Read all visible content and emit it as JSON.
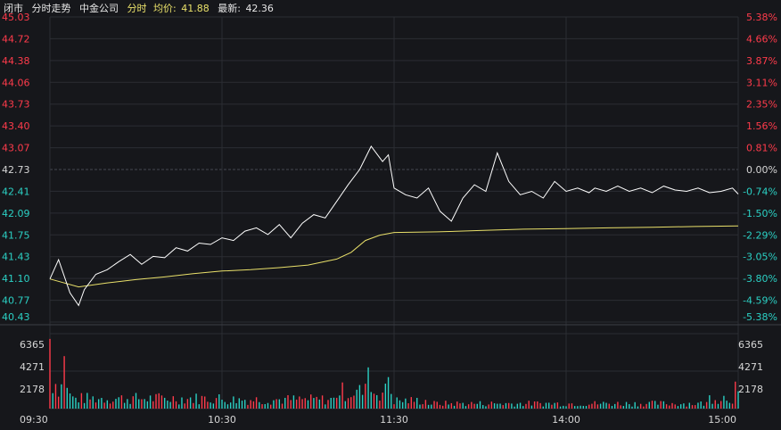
{
  "header": {
    "status": "闭市",
    "title": "分时走势",
    "stock_name": "中金公司",
    "mode_label": "分时",
    "avg_label": "均价:",
    "avg_value": "41.88",
    "last_label": "最新:",
    "last_value": "42.36"
  },
  "colors": {
    "background": "#16171b",
    "grid": "#2b2d33",
    "price_line": "#ffffff",
    "avg_line": "#e9e06a",
    "up": "#ff3b4b",
    "down": "#2bd0c4",
    "neutral": "#d6d6d6"
  },
  "chart_data": {
    "type": "line",
    "title": "",
    "prev_close": 42.73,
    "x_ticks": [
      "09:30",
      "10:30",
      "11:30",
      "14:00",
      "15:00"
    ],
    "y_left_ticks": [
      "45.03",
      "44.72",
      "44.38",
      "44.06",
      "43.73",
      "43.40",
      "43.07",
      "42.73",
      "42.41",
      "42.09",
      "41.75",
      "41.43",
      "41.10",
      "40.77",
      "40.43"
    ],
    "y_right_ticks": [
      "5.38%",
      "4.66%",
      "3.87%",
      "3.11%",
      "2.35%",
      "1.56%",
      "0.81%",
      "0.00%",
      "-0.74%",
      "-1.50%",
      "-2.29%",
      "-3.05%",
      "-3.80%",
      "-4.59%",
      "-5.38%"
    ],
    "ylim": [
      40.43,
      45.03
    ],
    "volume_ticks": [
      "6365",
      "4271",
      "2178"
    ],
    "volume_max": 8460,
    "series": [
      {
        "key": "price",
        "minutes": [
          0,
          3,
          7,
          10,
          12,
          16,
          20,
          24,
          28,
          32,
          36,
          40,
          44,
          48,
          52,
          56,
          60,
          64,
          68,
          72,
          76,
          80,
          84,
          88,
          92,
          96,
          100,
          104,
          108,
          112,
          116,
          118,
          120,
          124,
          128,
          132,
          136,
          140,
          144,
          148,
          152,
          156,
          160,
          164,
          168,
          172,
          176,
          180,
          184,
          188,
          190,
          194,
          198,
          202,
          206,
          210,
          214,
          218,
          222,
          226,
          230,
          234,
          238,
          240
        ],
        "values": [
          41.08,
          41.37,
          40.87,
          40.68,
          40.92,
          41.15,
          41.22,
          41.34,
          41.45,
          41.3,
          41.42,
          41.4,
          41.55,
          41.5,
          41.62,
          41.6,
          41.7,
          41.66,
          41.8,
          41.85,
          41.75,
          41.9,
          41.7,
          41.92,
          42.05,
          42.0,
          42.25,
          42.5,
          42.73,
          43.08,
          42.85,
          42.95,
          42.45,
          42.35,
          42.3,
          42.45,
          42.1,
          41.95,
          42.3,
          42.5,
          42.4,
          42.98,
          42.55,
          42.35,
          42.4,
          42.3,
          42.55,
          42.4,
          42.45,
          42.38,
          42.45,
          42.4,
          42.48,
          42.4,
          42.45,
          42.38,
          42.48,
          42.42,
          42.4,
          42.45,
          42.38,
          42.4,
          42.45,
          42.36
        ]
      },
      {
        "key": "average",
        "minutes": [
          0,
          10,
          20,
          30,
          40,
          50,
          60,
          70,
          80,
          90,
          100,
          105,
          110,
          115,
          120,
          135,
          150,
          165,
          180,
          195,
          210,
          225,
          240
        ],
        "values": [
          41.08,
          40.96,
          41.02,
          41.07,
          41.11,
          41.16,
          41.2,
          41.22,
          41.25,
          41.29,
          41.38,
          41.48,
          41.66,
          41.74,
          41.78,
          41.79,
          41.81,
          41.83,
          41.84,
          41.85,
          41.86,
          41.87,
          41.88
        ]
      }
    ]
  }
}
